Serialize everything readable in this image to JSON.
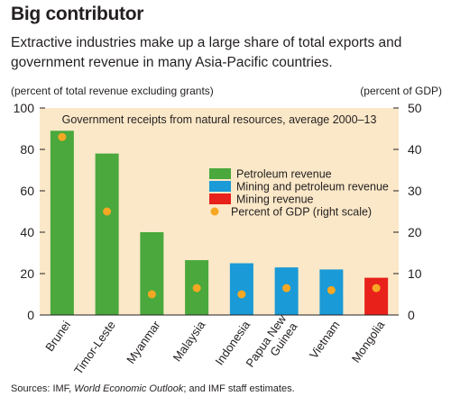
{
  "title": "Big contributor",
  "subtitle": "Extractive industries make up a large share of total exports and government revenue in many Asia-Pacific countries.",
  "left_unit": "(percent of total revenue excluding grants)",
  "right_unit": "(percent of GDP)",
  "source": {
    "prefix": "Sources: IMF, ",
    "italic": "World Economic Outlook",
    "suffix": "; and IMF staff estimates."
  },
  "colors": {
    "plot_bg": "#fbe8c8",
    "petroleum": "#4aa83c",
    "mining_petroleum": "#1a9ad6",
    "mining": "#e8211b",
    "gdp_dot": "#f7a823"
  },
  "chart_data": {
    "type": "bar",
    "title": "Government receipts from natural resources, average 2000–13",
    "categories": [
      "Brunei",
      "Timor-Leste",
      "Myanmar",
      "Malaysia",
      "Indonesia",
      "Papua New Guinea",
      "Vietnam",
      "Mongolia"
    ],
    "series": [
      {
        "name": "Revenue",
        "axis": "left",
        "values": [
          89,
          78,
          40,
          26.5,
          25,
          23,
          22,
          18
        ],
        "categories_type": [
          "Petroleum revenue",
          "Petroleum revenue",
          "Petroleum revenue",
          "Petroleum revenue",
          "Mining and petroleum revenue",
          "Mining and petroleum revenue",
          "Mining and petroleum revenue",
          "Mining revenue"
        ]
      },
      {
        "name": "Percent of GDP (right scale)",
        "axis": "right",
        "type": "scatter",
        "values": [
          43,
          25,
          5,
          6.5,
          5,
          6.5,
          6,
          6.5
        ]
      }
    ],
    "legend": {
      "placement": "center-right",
      "entries": [
        {
          "label": "Petroleum revenue",
          "color": "#4aa83c",
          "shape": "square"
        },
        {
          "label": "Mining and petroleum revenue",
          "color": "#1a9ad6",
          "shape": "square"
        },
        {
          "label": "Mining revenue",
          "color": "#e8211b",
          "shape": "square"
        },
        {
          "label": "Percent of GDP (right scale)",
          "color": "#f7a823",
          "shape": "circle"
        }
      ]
    },
    "ylim_left": [
      0,
      100
    ],
    "yticks_left": [
      0,
      20,
      40,
      60,
      80,
      100
    ],
    "ylim_right": [
      0,
      50
    ],
    "yticks_right": [
      0,
      10,
      20,
      30,
      40,
      50
    ],
    "grid": false
  }
}
